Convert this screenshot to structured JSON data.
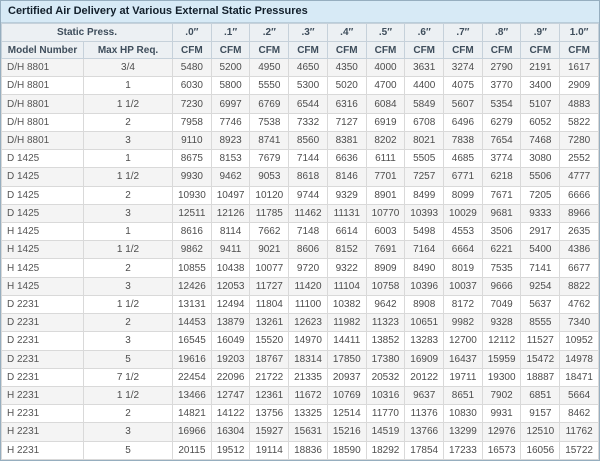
{
  "title": "Certified Air Delivery at Various External Static Pressures",
  "chart_data": {
    "type": "table",
    "title": "Certified Air Delivery at Various External Static Pressures",
    "header": {
      "group_label": "Static Press.",
      "pressures": [
        ".0″",
        ".1″",
        ".2″",
        ".3″",
        ".4″",
        ".5″",
        ".6″",
        ".7″",
        ".8″",
        ".9″",
        "1.0″"
      ],
      "model_col": "Model Number",
      "hp_col": "Max HP Req.",
      "unit": "CFM"
    },
    "rows": [
      {
        "model": "D/H 8801",
        "hp": "3/4",
        "cfm": [
          5480,
          5200,
          4950,
          4650,
          4350,
          4000,
          3631,
          3274,
          2790,
          2191,
          1617
        ]
      },
      {
        "model": "D/H 8801",
        "hp": "1",
        "cfm": [
          6030,
          5800,
          5550,
          5300,
          5020,
          4700,
          4400,
          4075,
          3770,
          3400,
          2909
        ]
      },
      {
        "model": "D/H 8801",
        "hp": "1 1/2",
        "cfm": [
          7230,
          6997,
          6769,
          6544,
          6316,
          6084,
          5849,
          5607,
          5354,
          5107,
          4883
        ]
      },
      {
        "model": "D/H 8801",
        "hp": "2",
        "cfm": [
          7958,
          7746,
          7538,
          7332,
          7127,
          6919,
          6708,
          6496,
          6279,
          6052,
          5822
        ]
      },
      {
        "model": "D/H 8801",
        "hp": "3",
        "cfm": [
          9110,
          8923,
          8741,
          8560,
          8381,
          8202,
          8021,
          7838,
          7654,
          7468,
          7280
        ]
      },
      {
        "model": "D 1425",
        "hp": "1",
        "cfm": [
          8675,
          8153,
          7679,
          7144,
          6636,
          6111,
          5505,
          4685,
          3774,
          3080,
          2552
        ]
      },
      {
        "model": "D 1425",
        "hp": "1 1/2",
        "cfm": [
          9930,
          9462,
          9053,
          8618,
          8146,
          7701,
          7257,
          6771,
          6218,
          5506,
          4777
        ]
      },
      {
        "model": "D 1425",
        "hp": "2",
        "cfm": [
          10930,
          10497,
          10120,
          9744,
          9329,
          8901,
          8499,
          8099,
          7671,
          7205,
          6666
        ]
      },
      {
        "model": "D 1425",
        "hp": "3",
        "cfm": [
          12511,
          12126,
          11785,
          11462,
          11131,
          10770,
          10393,
          10029,
          9681,
          9333,
          8966
        ]
      },
      {
        "model": "H 1425",
        "hp": "1",
        "cfm": [
          8616,
          8114,
          7662,
          7148,
          6614,
          6003,
          5498,
          4553,
          3506,
          2917,
          2635
        ]
      },
      {
        "model": "H 1425",
        "hp": "1 1/2",
        "cfm": [
          9862,
          9411,
          9021,
          8606,
          8152,
          7691,
          7164,
          6664,
          6221,
          5400,
          4386
        ]
      },
      {
        "model": "H 1425",
        "hp": "2",
        "cfm": [
          10855,
          10438,
          10077,
          9720,
          9322,
          8909,
          8490,
          8019,
          7535,
          7141,
          6677
        ]
      },
      {
        "model": "H 1425",
        "hp": "3",
        "cfm": [
          12426,
          12053,
          11727,
          11420,
          11104,
          10758,
          10396,
          10037,
          9666,
          9254,
          8822
        ]
      },
      {
        "model": "D 2231",
        "hp": "1 1/2",
        "cfm": [
          13131,
          12494,
          11804,
          11100,
          10382,
          9642,
          8908,
          8172,
          7049,
          5637,
          4762
        ]
      },
      {
        "model": "D 2231",
        "hp": "2",
        "cfm": [
          14453,
          13879,
          13261,
          12623,
          11982,
          11323,
          10651,
          9982,
          9328,
          8555,
          7340
        ]
      },
      {
        "model": "D 2231",
        "hp": "3",
        "cfm": [
          16545,
          16049,
          15520,
          14970,
          14411,
          13852,
          13283,
          12700,
          12112,
          11527,
          10952
        ]
      },
      {
        "model": "D 2231",
        "hp": "5",
        "cfm": [
          19616,
          19203,
          18767,
          18314,
          17850,
          17380,
          16909,
          16437,
          15959,
          15472,
          14978
        ]
      },
      {
        "model": "D 2231",
        "hp": "7 1/2",
        "cfm": [
          22454,
          22096,
          21722,
          21335,
          20937,
          20532,
          20122,
          19711,
          19300,
          18887,
          18471
        ]
      },
      {
        "model": "H 2231",
        "hp": "1 1/2",
        "cfm": [
          13466,
          12747,
          12361,
          11672,
          10769,
          10316,
          9637,
          8651,
          7902,
          6851,
          5664
        ]
      },
      {
        "model": "H 2231",
        "hp": "2",
        "cfm": [
          14821,
          14122,
          13756,
          13325,
          12514,
          11770,
          11376,
          10830,
          9931,
          9157,
          8462
        ]
      },
      {
        "model": "H 2231",
        "hp": "3",
        "cfm": [
          16966,
          16304,
          15927,
          15631,
          15216,
          14519,
          13766,
          13299,
          12976,
          12510,
          11762
        ]
      },
      {
        "model": "H 2231",
        "hp": "5",
        "cfm": [
          20115,
          19512,
          19114,
          18836,
          18590,
          18292,
          17854,
          17233,
          16573,
          16056,
          15722
        ]
      }
    ]
  },
  "colors": {
    "title_bg": "#d7eaf6",
    "title_text": "#121f2b",
    "header_bg": "#ecf0f3",
    "header_text": "#3e4d5b",
    "row_alt_bg": "#f4f4f4",
    "row_bg": "#ffffff",
    "cell_text": "#4d4d4d",
    "border_outer": "#96aebf",
    "border_inner": "#d9d9d9"
  }
}
